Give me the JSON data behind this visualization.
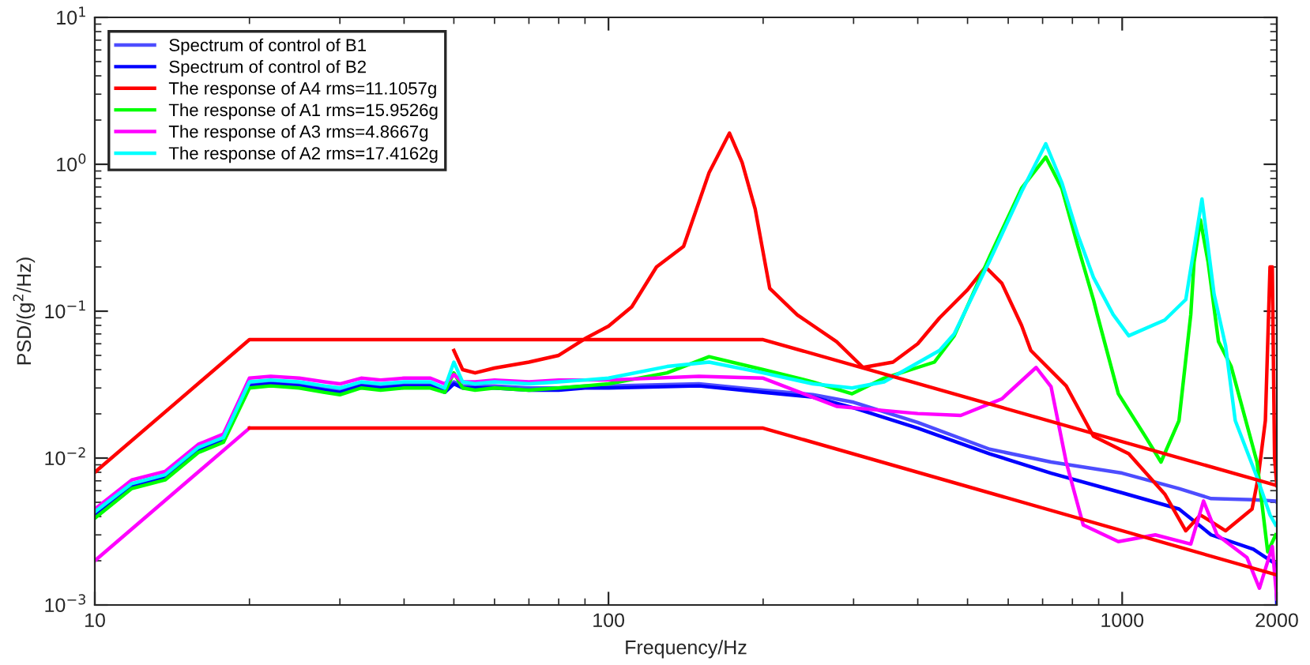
{
  "chart_data": {
    "type": "line",
    "xlabel": "Frequency/Hz",
    "ylabel": "PSD/(g$^{2}$/Hz)",
    "log": "xy",
    "grid": false,
    "legend": "top left",
    "marker": "none",
    "line_style": "solid",
    "xlim": [
      10,
      2000
    ],
    "xticks": [
      10,
      100,
      1000,
      2000
    ],
    "ylim": [
      0.001,
      10
    ],
    "yticks": [
      {
        "value": 0.001,
        "label": "10$^{−3}$"
      },
      {
        "value": 0.01,
        "label": "10$^{−2}$"
      },
      {
        "value": 0.1,
        "label": "10$^{−1}$"
      },
      {
        "value": 1,
        "label": "10$^{0}$"
      },
      {
        "value": 10,
        "label": "10$^{1}$"
      }
    ],
    "series": [
      {
        "name": "Spectrum of control of B1",
        "color": "#4d4dff",
        "x": [
          10,
          11.8,
          13.7,
          15.9,
          17.8,
          20,
          22,
          25,
          28,
          30,
          33,
          36,
          40,
          45,
          48,
          50,
          52,
          55,
          60,
          70,
          80,
          90,
          100,
          150,
          200,
          250,
          300,
          400,
          552,
          727,
          1000,
          1290,
          1490,
          1800,
          1990,
          2000
        ],
        "values": [
          0.0042,
          0.0066,
          0.0075,
          0.0115,
          0.0135,
          0.032,
          0.033,
          0.032,
          0.03,
          0.029,
          0.032,
          0.031,
          0.032,
          0.032,
          0.029,
          0.033,
          0.031,
          0.031,
          0.031,
          0.03,
          0.03,
          0.031,
          0.031,
          0.032,
          0.029,
          0.027,
          0.024,
          0.0175,
          0.0115,
          0.0094,
          0.0079,
          0.0062,
          0.0053,
          0.0052,
          0.0051,
          0.005
        ]
      },
      {
        "name": "Spectrum of control of B2",
        "color": "#0000ff",
        "x": [
          10,
          11.8,
          13.7,
          15.9,
          17.8,
          20,
          22,
          25,
          28,
          30,
          33,
          36,
          40,
          45,
          48,
          50,
          52,
          55,
          60,
          70,
          80,
          90,
          100,
          150,
          200,
          250,
          300,
          400,
          552,
          727,
          1000,
          1290,
          1490,
          1800,
          1990,
          2000
        ],
        "values": [
          0.0041,
          0.0065,
          0.0074,
          0.0113,
          0.0133,
          0.031,
          0.032,
          0.031,
          0.029,
          0.028,
          0.031,
          0.03,
          0.031,
          0.031,
          0.028,
          0.032,
          0.03,
          0.03,
          0.03,
          0.029,
          0.029,
          0.03,
          0.03,
          0.031,
          0.028,
          0.026,
          0.022,
          0.016,
          0.0107,
          0.0079,
          0.0058,
          0.0045,
          0.003,
          0.0024,
          0.0019,
          0.001
        ]
      },
      {
        "name": "The response of A4 rms=11.1057g",
        "color": "#ff0000",
        "x": [
          50,
          52,
          55,
          60,
          70,
          80,
          90,
          100,
          111,
          124,
          140,
          157,
          172,
          182,
          193,
          206,
          233,
          278,
          313,
          358,
          400,
          441,
          500,
          542,
          583,
          637,
          664,
          778,
          879,
          1030,
          1210,
          1330,
          1420,
          1590,
          1790,
          1840,
          1900,
          1940,
          1960,
          1980,
          2000
        ],
        "values": [
          0.054,
          0.04,
          0.038,
          0.041,
          0.045,
          0.05,
          0.065,
          0.079,
          0.107,
          0.2,
          0.276,
          0.877,
          1.63,
          1.03,
          0.496,
          0.143,
          0.0945,
          0.062,
          0.0414,
          0.045,
          0.06,
          0.09,
          0.14,
          0.2,
          0.155,
          0.08,
          0.054,
          0.031,
          0.0141,
          0.0107,
          0.0057,
          0.0032,
          0.0041,
          0.0032,
          0.0045,
          0.0074,
          0.018,
          0.2,
          0.2,
          0.01,
          0.0065
        ]
      },
      {
        "name": "The response of A1 rms=15.9526g",
        "color": "#00ff00",
        "x": [
          10,
          11.8,
          13.7,
          15.9,
          17.8,
          20,
          22,
          25,
          28,
          30,
          33,
          36,
          40,
          45,
          48,
          50,
          52,
          55,
          60,
          70,
          80,
          90,
          100,
          130,
          157,
          200,
          250,
          298,
          344,
          431,
          471,
          552,
          637,
          710,
          763,
          820,
          879,
          894,
          983,
          1110,
          1190,
          1290,
          1360,
          1380,
          1420,
          1470,
          1540,
          1630,
          1830,
          1920,
          1990
        ],
        "values": [
          0.0039,
          0.0062,
          0.0071,
          0.0109,
          0.0128,
          0.03,
          0.031,
          0.03,
          0.028,
          0.027,
          0.03,
          0.029,
          0.03,
          0.03,
          0.028,
          0.038,
          0.03,
          0.029,
          0.03,
          0.029,
          0.03,
          0.031,
          0.032,
          0.038,
          0.049,
          0.04,
          0.033,
          0.0274,
          0.035,
          0.045,
          0.068,
          0.235,
          0.686,
          1.12,
          0.686,
          0.276,
          0.12,
          0.095,
          0.0274,
          0.014,
          0.0094,
          0.018,
          0.095,
          0.215,
          0.418,
          0.215,
          0.062,
          0.042,
          0.0094,
          0.0023,
          0.003
        ]
      },
      {
        "name": "The response of A3 rms=4.8667g",
        "color": "#ff00ff",
        "x": [
          10,
          11.8,
          13.7,
          15.9,
          17.8,
          20,
          22,
          25,
          28,
          30,
          33,
          36,
          40,
          45,
          48,
          50,
          52,
          55,
          60,
          70,
          80,
          90,
          100,
          150,
          200,
          278,
          400,
          485,
          583,
          680,
          727,
          778,
          840,
          983,
          1160,
          1360,
          1440,
          1530,
          1750,
          1850,
          1960,
          2000
        ],
        "values": [
          0.0045,
          0.0071,
          0.0081,
          0.0124,
          0.0146,
          0.035,
          0.036,
          0.035,
          0.033,
          0.032,
          0.035,
          0.034,
          0.035,
          0.035,
          0.032,
          0.037,
          0.033,
          0.033,
          0.034,
          0.033,
          0.034,
          0.034,
          0.034,
          0.036,
          0.035,
          0.0225,
          0.0201,
          0.0195,
          0.0253,
          0.0414,
          0.0306,
          0.0094,
          0.0035,
          0.0027,
          0.003,
          0.0026,
          0.0051,
          0.003,
          0.0021,
          0.0013,
          0.0025,
          0.0011
        ]
      },
      {
        "name": "The response of A2 rms=17.4162g",
        "color": "#00ffff",
        "x": [
          10,
          11.8,
          13.7,
          15.9,
          17.8,
          20,
          22,
          25,
          28,
          30,
          33,
          36,
          40,
          45,
          48,
          50,
          52,
          55,
          60,
          70,
          80,
          90,
          100,
          130,
          157,
          200,
          250,
          298,
          344,
          441,
          471,
          552,
          637,
          710,
          763,
          820,
          879,
          960,
          1030,
          1210,
          1330,
          1430,
          1510,
          1590,
          1660,
          1830,
          1940,
          1990
        ],
        "values": [
          0.0043,
          0.0067,
          0.0077,
          0.0118,
          0.0138,
          0.033,
          0.034,
          0.033,
          0.031,
          0.03,
          0.033,
          0.032,
          0.033,
          0.033,
          0.03,
          0.045,
          0.033,
          0.032,
          0.033,
          0.032,
          0.033,
          0.034,
          0.035,
          0.042,
          0.045,
          0.038,
          0.032,
          0.03,
          0.033,
          0.054,
          0.07,
          0.22,
          0.65,
          1.38,
          0.75,
          0.33,
          0.17,
          0.095,
          0.068,
          0.087,
          0.12,
          0.58,
          0.13,
          0.058,
          0.018,
          0.0074,
          0.0041,
          0.0035
        ]
      },
      {
        "color": "#ff0000",
        "x": [
          10,
          20,
          200,
          2000
        ],
        "values": [
          0.008,
          0.064,
          0.064,
          0.0065
        ]
      },
      {
        "color": "#ff00ff",
        "x": [
          10,
          20
        ],
        "values": [
          0.002,
          0.016
        ]
      },
      {
        "color": "#ff0000",
        "x": [
          20,
          200,
          2000
        ],
        "values": [
          0.016,
          0.016,
          0.0016
        ]
      }
    ]
  }
}
